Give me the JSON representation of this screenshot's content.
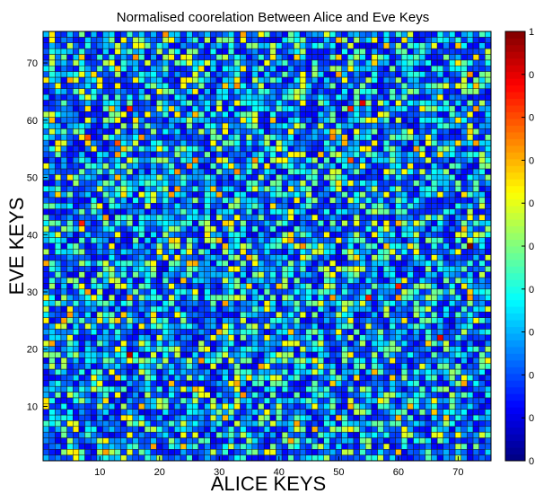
{
  "chart_data": {
    "type": "heatmap",
    "title": "Normalised coorelation Between Alice and Eve Keys",
    "xlabel": "ALICE KEYS",
    "ylabel": "EVE KEYS",
    "xlim": [
      0.5,
      75.5
    ],
    "ylim": [
      0.5,
      75.5
    ],
    "grid_size": [
      75,
      75
    ],
    "xticks": [
      10,
      20,
      30,
      40,
      50,
      60,
      70
    ],
    "yticks": [
      10,
      20,
      30,
      40,
      50,
      60,
      70
    ],
    "value_range": [
      0,
      1
    ],
    "colormap": "jet",
    "colorbar": {
      "placement": "right",
      "tick_labels": [
        "0",
        "0",
        "0",
        "0",
        "0",
        "0",
        "0",
        "0",
        "0",
        "0",
        "1"
      ]
    },
    "highlight_cells": [
      {
        "x": 72,
        "y": 38,
        "value": 1.0
      },
      {
        "x": 49,
        "y": 57,
        "value": 0.75
      },
      {
        "x": 49,
        "y": 58,
        "value": 0.7
      },
      {
        "x": 15,
        "y": 62,
        "value": 0.85
      },
      {
        "x": 52,
        "y": 62,
        "value": 0.85
      },
      {
        "x": 54,
        "y": 63,
        "value": 0.9
      },
      {
        "x": 67,
        "y": 22,
        "value": 0.9
      },
      {
        "x": 60,
        "y": 31,
        "value": 0.85
      },
      {
        "x": 15,
        "y": 19,
        "value": 0.95
      },
      {
        "x": 55,
        "y": 29,
        "value": 0.85
      },
      {
        "x": 8,
        "y": 57,
        "value": 0.8
      },
      {
        "x": 52,
        "y": 53,
        "value": 0.8
      },
      {
        "x": 7,
        "y": 42,
        "value": 0.85
      },
      {
        "x": 13,
        "y": 56,
        "value": 0.8
      }
    ],
    "colors": {
      "low": "#00008f",
      "mid": "#00ffff",
      "high": "#800000",
      "cell_border": "#1a1a1a"
    }
  }
}
